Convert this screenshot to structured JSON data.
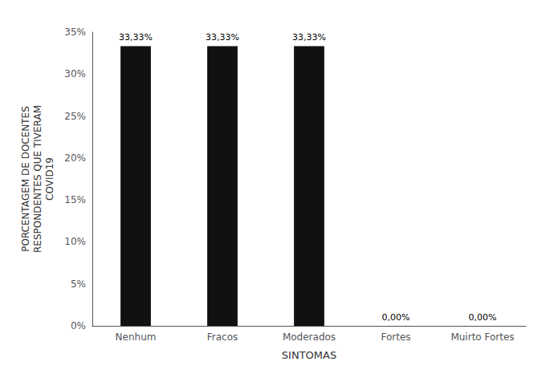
{
  "chart_data": {
    "type": "bar",
    "categories": [
      "Nenhum",
      "Fracos",
      "Moderados",
      "Fortes",
      "Muirto Fortes"
    ],
    "values": [
      33.33,
      33.33,
      33.33,
      0.0,
      0.0
    ],
    "value_labels": [
      "33,33%",
      "33,33%",
      "33,33%",
      "0,00%",
      "0,00%"
    ],
    "data_labels": true,
    "color": "#111111",
    "xlabel": "SINTOMAS",
    "ylabel": "PORCENTAGEM DE DOCENTES\nRESPONDENTES QUE TIVERAM\nCOVID19",
    "ylim": [
      0,
      35
    ],
    "yticks": [
      {
        "value": 0,
        "label": "0%"
      },
      {
        "value": 5,
        "label": "5%"
      },
      {
        "value": 10,
        "label": "10%"
      },
      {
        "value": 15,
        "label": "15%"
      },
      {
        "value": 20,
        "label": "20%"
      },
      {
        "value": 25,
        "label": "25%"
      },
      {
        "value": 30,
        "label": "30%"
      },
      {
        "value": 35,
        "label": "35%"
      }
    ],
    "grid": false
  }
}
